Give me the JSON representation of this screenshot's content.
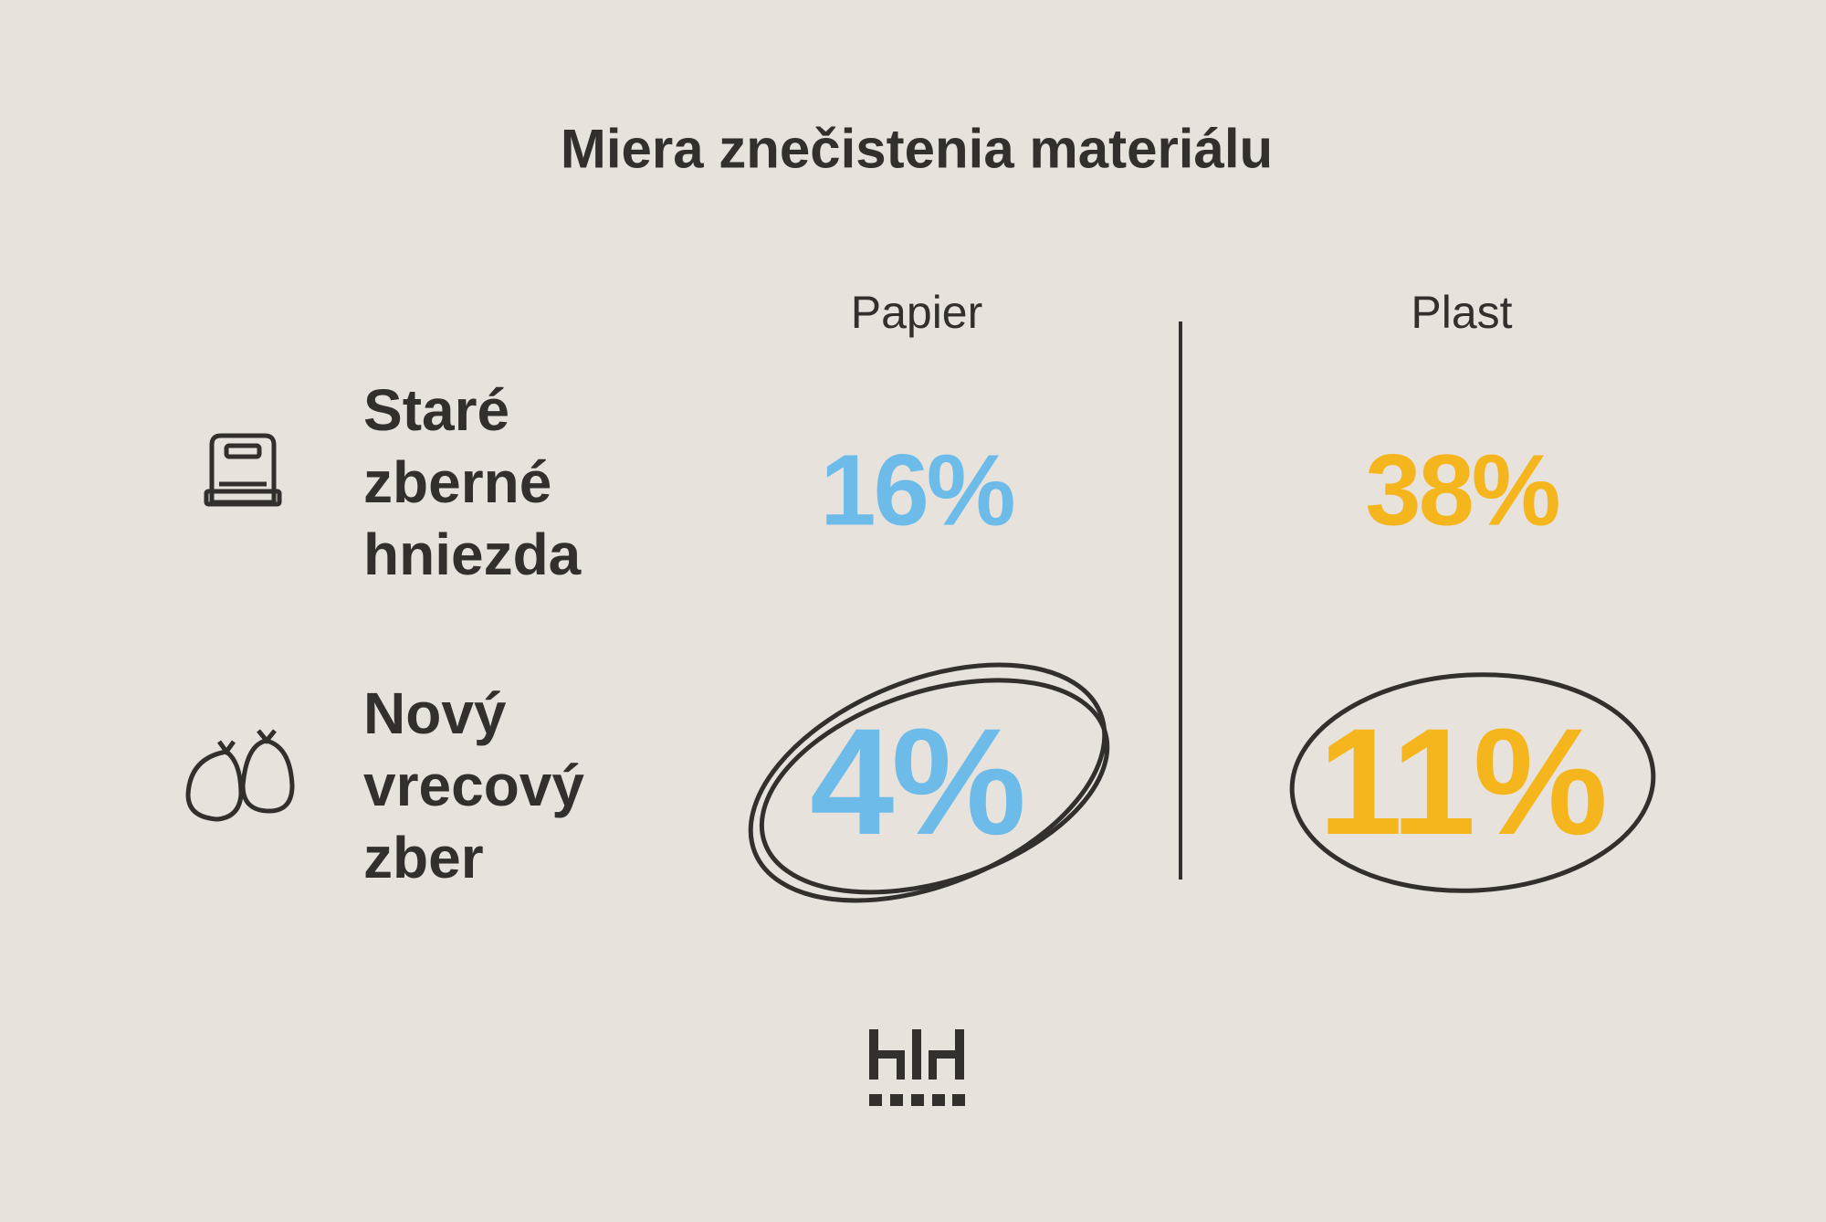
{
  "title": "Miera znečistenia materiálu",
  "columns": [
    {
      "label": "Papier",
      "color": "#6cbbe9"
    },
    {
      "label": "Plast",
      "color": "#f5b51c"
    }
  ],
  "rows": [
    {
      "label": "Staré zberné hniezda",
      "values": [
        "16%",
        "38%"
      ],
      "highlighted": false
    },
    {
      "label": "Nový vrecový zber",
      "values": [
        "4%",
        "11%"
      ],
      "highlighted": true
    }
  ]
}
